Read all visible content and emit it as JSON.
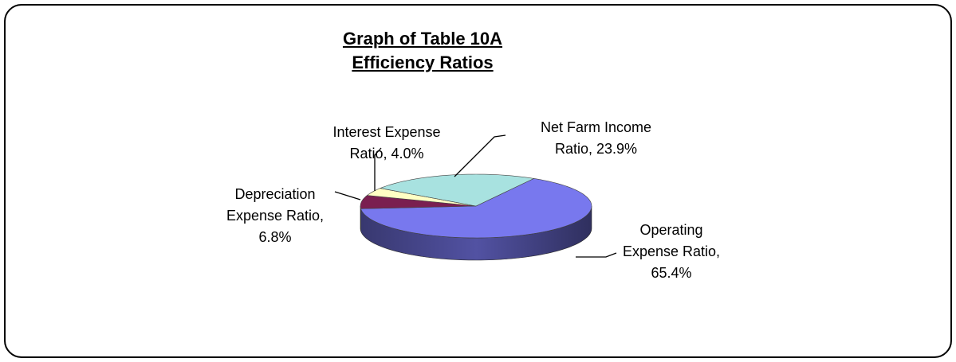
{
  "chart_data": {
    "type": "pie",
    "title": "Graph of Table 10A",
    "subtitle": "Efficiency Ratios",
    "categories": [
      "Operating Expense Ratio,",
      "Depreciation Expense Ratio,",
      "Interest Expense Ratio,",
      "Net Farm Income Ratio,"
    ],
    "values": [
      65.4,
      6.8,
      4.0,
      23.9
    ],
    "value_labels": [
      "65.4%",
      "6.8%",
      "4.0%",
      "23.9%"
    ],
    "colors": [
      "#7878ee",
      "#7a1f50",
      "#ffffc4",
      "#a8e2e0"
    ],
    "three_d": true
  }
}
